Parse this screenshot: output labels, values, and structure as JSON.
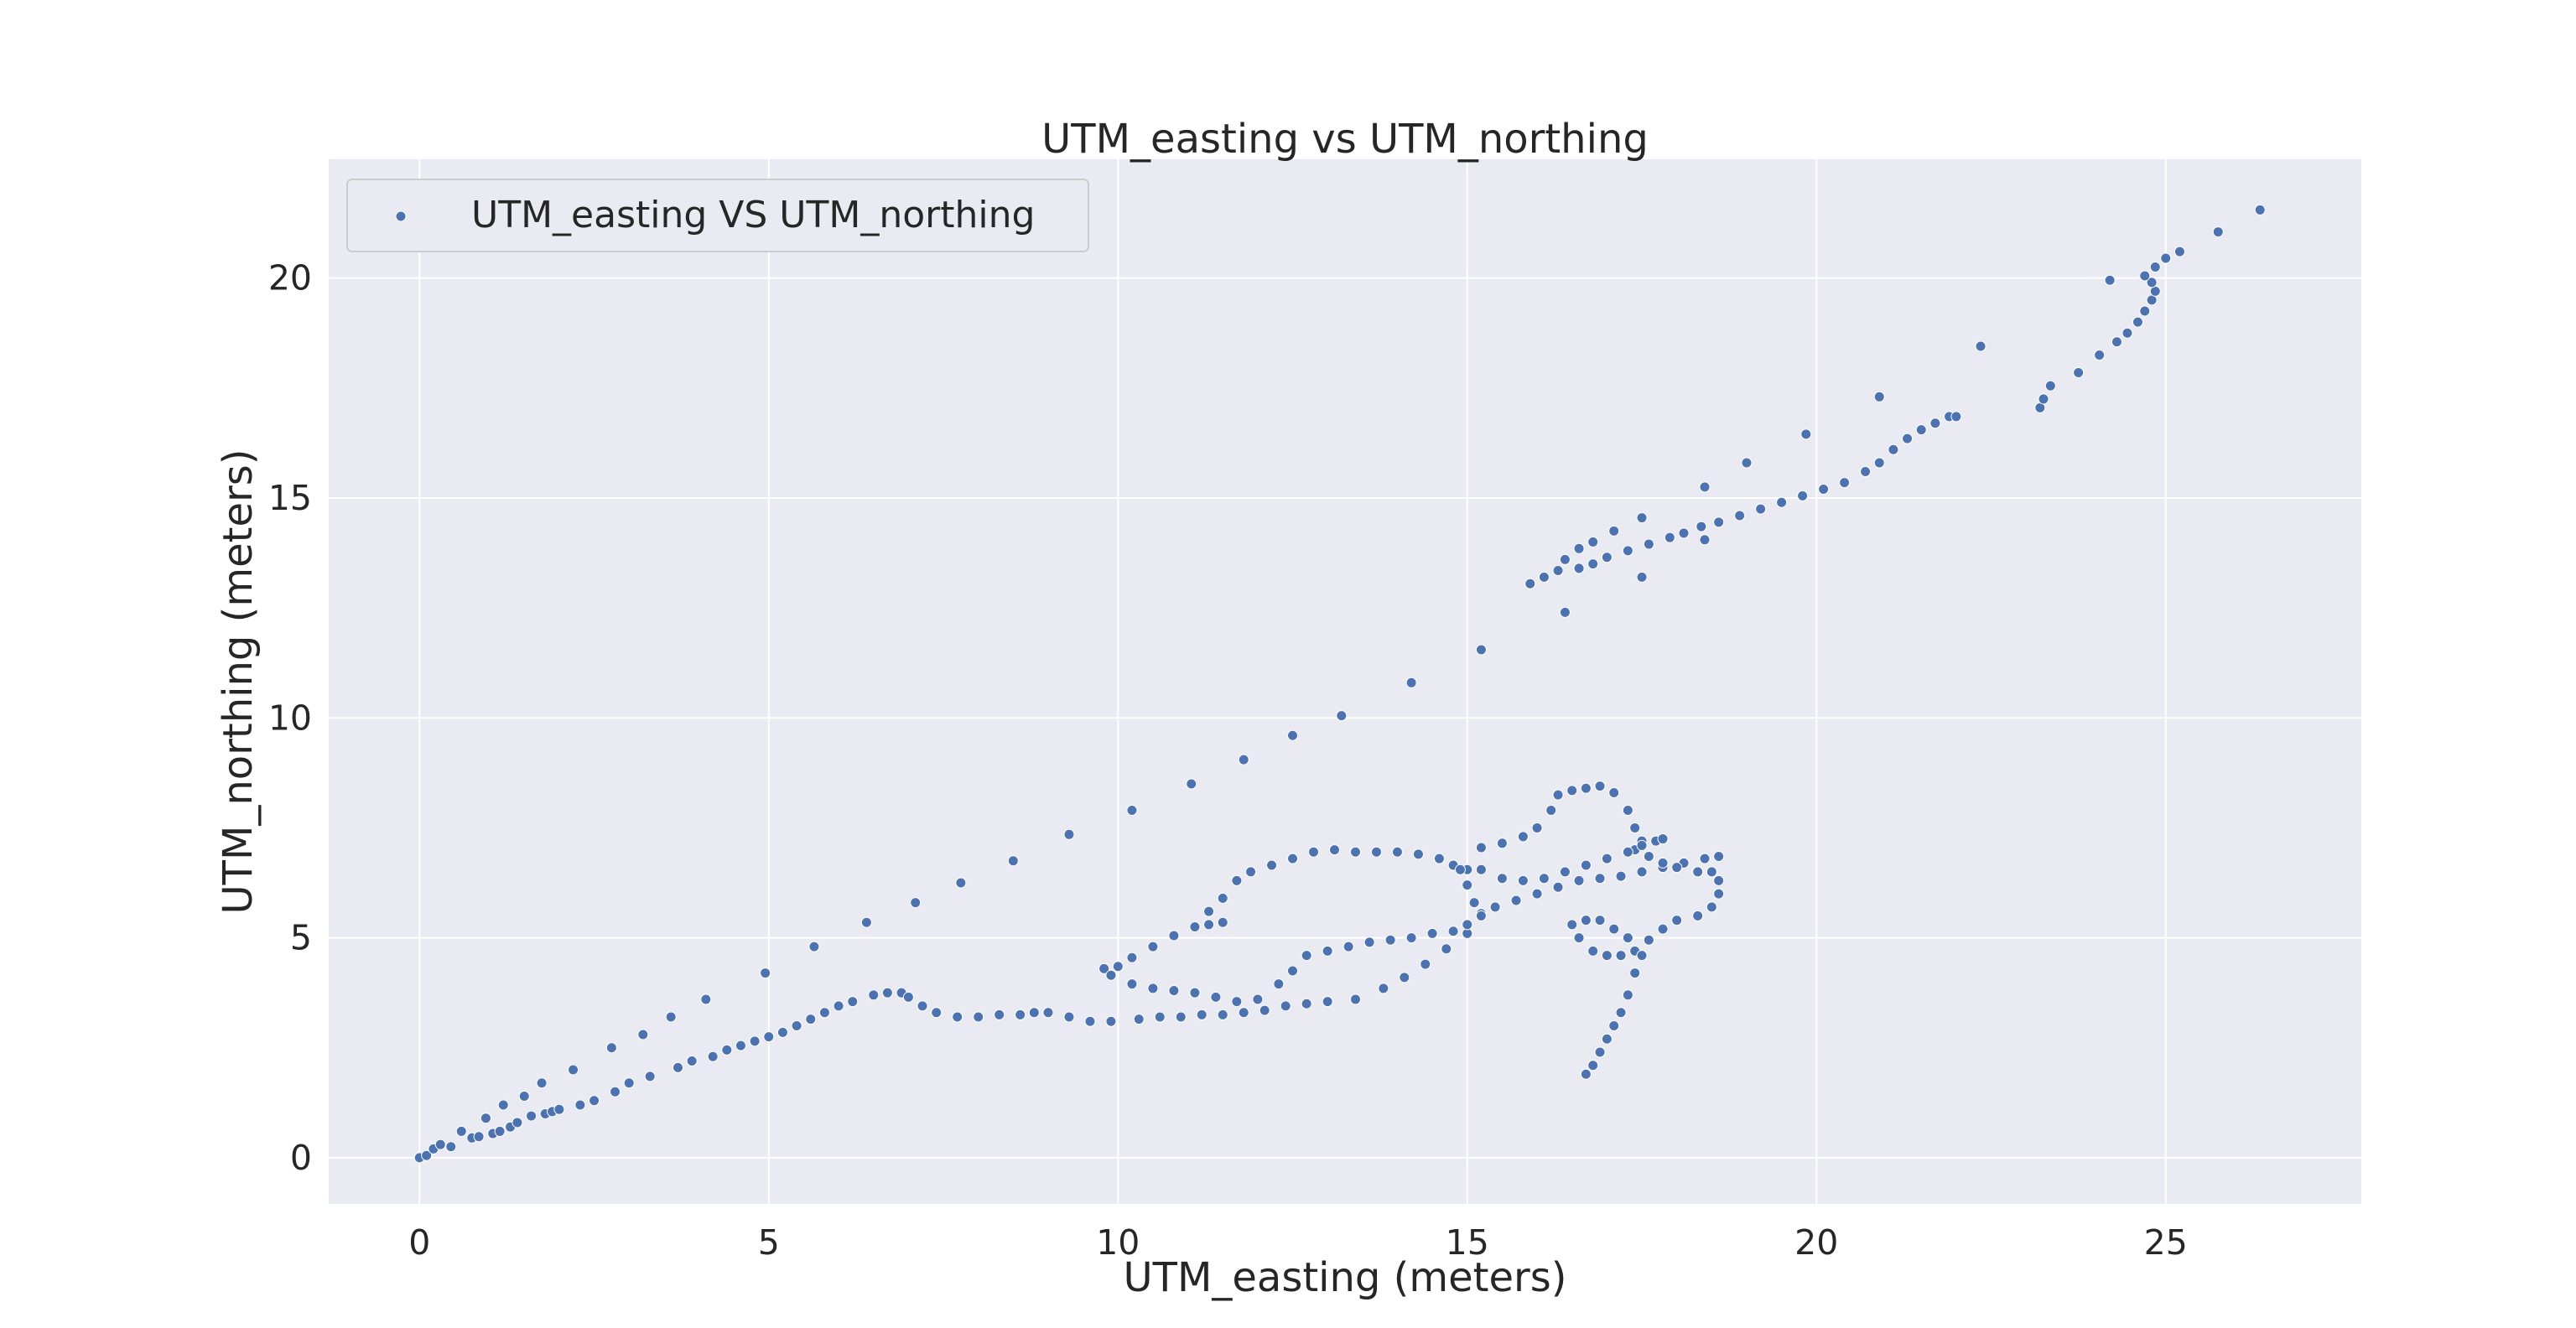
{
  "chart_data": {
    "type": "scatter",
    "title": "UTM_easting vs UTM_northing",
    "xlabel": "UTM_easting (meters)",
    "ylabel": "UTM_northing (meters)",
    "xlim": [
      -1.3,
      27.8
    ],
    "ylim": [
      -1.05,
      22.7
    ],
    "xticks": [
      0,
      5,
      10,
      15,
      20,
      25
    ],
    "yticks": [
      0,
      5,
      10,
      15,
      20
    ],
    "grid": true,
    "legend": {
      "placement": "top-left",
      "entries": [
        "UTM_easting VS UTM_northing"
      ]
    },
    "colors": {
      "point": "#4c72b0",
      "background": "#eaeaf2",
      "grid": "#ffffff"
    },
    "series": [
      {
        "name": "UTM_easting VS UTM_northing",
        "points": [
          [
            0.0,
            0.0
          ],
          [
            0.1,
            0.05
          ],
          [
            0.2,
            0.2
          ],
          [
            0.3,
            0.3
          ],
          [
            0.45,
            0.25
          ],
          [
            0.6,
            0.6
          ],
          [
            0.75,
            0.45
          ],
          [
            0.85,
            0.48
          ],
          [
            0.95,
            0.9
          ],
          [
            1.05,
            0.55
          ],
          [
            1.15,
            0.6
          ],
          [
            1.2,
            1.2
          ],
          [
            1.3,
            0.7
          ],
          [
            1.4,
            0.8
          ],
          [
            1.5,
            1.4
          ],
          [
            1.6,
            0.95
          ],
          [
            1.75,
            1.7
          ],
          [
            1.8,
            1.0
          ],
          [
            1.9,
            1.05
          ],
          [
            2.0,
            1.1
          ],
          [
            2.2,
            2.0
          ],
          [
            2.3,
            1.2
          ],
          [
            2.5,
            1.3
          ],
          [
            2.75,
            2.5
          ],
          [
            2.8,
            1.5
          ],
          [
            3.0,
            1.7
          ],
          [
            3.2,
            2.8
          ],
          [
            3.3,
            1.85
          ],
          [
            3.6,
            3.2
          ],
          [
            3.7,
            2.05
          ],
          [
            3.9,
            2.2
          ],
          [
            4.1,
            3.6
          ],
          [
            4.2,
            2.3
          ],
          [
            4.4,
            2.45
          ],
          [
            4.6,
            2.55
          ],
          [
            4.8,
            2.65
          ],
          [
            4.95,
            4.2
          ],
          [
            5.0,
            2.75
          ],
          [
            5.2,
            2.85
          ],
          [
            5.4,
            3.0
          ],
          [
            5.6,
            3.15
          ],
          [
            5.65,
            4.8
          ],
          [
            5.8,
            3.3
          ],
          [
            6.0,
            3.45
          ],
          [
            6.2,
            3.55
          ],
          [
            6.4,
            5.35
          ],
          [
            6.5,
            3.7
          ],
          [
            6.7,
            3.75
          ],
          [
            6.9,
            3.75
          ],
          [
            7.0,
            3.65
          ],
          [
            7.1,
            5.8
          ],
          [
            7.2,
            3.45
          ],
          [
            7.4,
            3.3
          ],
          [
            7.7,
            3.2
          ],
          [
            7.75,
            6.25
          ],
          [
            8.0,
            3.2
          ],
          [
            8.3,
            3.25
          ],
          [
            8.5,
            6.75
          ],
          [
            8.6,
            3.25
          ],
          [
            8.8,
            3.3
          ],
          [
            9.0,
            3.3
          ],
          [
            9.3,
            7.35
          ],
          [
            9.3,
            3.2
          ],
          [
            9.6,
            3.1
          ],
          [
            9.9,
            3.1
          ],
          [
            10.2,
            7.9
          ],
          [
            10.3,
            3.15
          ],
          [
            10.6,
            3.2
          ],
          [
            10.9,
            3.2
          ],
          [
            11.05,
            8.5
          ],
          [
            11.2,
            3.25
          ],
          [
            11.5,
            3.25
          ],
          [
            11.8,
            9.05
          ],
          [
            11.8,
            3.3
          ],
          [
            12.1,
            3.35
          ],
          [
            12.5,
            9.6
          ],
          [
            12.4,
            3.45
          ],
          [
            12.7,
            3.5
          ],
          [
            13.0,
            3.55
          ],
          [
            13.2,
            10.05
          ],
          [
            13.4,
            3.6
          ],
          [
            13.8,
            3.85
          ],
          [
            14.2,
            10.8
          ],
          [
            14.1,
            4.1
          ],
          [
            14.4,
            4.4
          ],
          [
            14.7,
            4.75
          ],
          [
            15.0,
            5.1
          ],
          [
            15.2,
            11.55
          ],
          [
            9.8,
            4.3
          ],
          [
            10.0,
            4.35
          ],
          [
            10.2,
            4.55
          ],
          [
            10.5,
            4.8
          ],
          [
            10.8,
            5.05
          ],
          [
            11.1,
            5.25
          ],
          [
            11.3,
            5.3
          ],
          [
            11.5,
            5.35
          ],
          [
            11.3,
            5.6
          ],
          [
            11.5,
            5.9
          ],
          [
            11.7,
            6.3
          ],
          [
            11.9,
            6.5
          ],
          [
            12.2,
            6.65
          ],
          [
            12.5,
            6.8
          ],
          [
            12.8,
            6.95
          ],
          [
            13.1,
            7.0
          ],
          [
            13.4,
            6.95
          ],
          [
            13.7,
            6.95
          ],
          [
            14.0,
            6.95
          ],
          [
            14.3,
            6.9
          ],
          [
            14.6,
            6.8
          ],
          [
            14.8,
            6.65
          ],
          [
            15.0,
            6.55
          ],
          [
            9.9,
            4.15
          ],
          [
            10.2,
            3.95
          ],
          [
            10.5,
            3.85
          ],
          [
            10.8,
            3.8
          ],
          [
            11.1,
            3.75
          ],
          [
            11.4,
            3.65
          ],
          [
            11.7,
            3.55
          ],
          [
            12.0,
            3.6
          ],
          [
            12.3,
            3.95
          ],
          [
            12.5,
            4.25
          ],
          [
            12.7,
            4.6
          ],
          [
            13.0,
            4.7
          ],
          [
            13.3,
            4.8
          ],
          [
            13.6,
            4.9
          ],
          [
            13.9,
            4.95
          ],
          [
            14.2,
            5.0
          ],
          [
            14.5,
            5.1
          ],
          [
            14.8,
            5.15
          ],
          [
            15.0,
            5.3
          ],
          [
            15.2,
            5.55
          ],
          [
            15.4,
            5.7
          ],
          [
            15.7,
            5.85
          ],
          [
            16.0,
            6.0
          ],
          [
            16.3,
            6.15
          ],
          [
            16.6,
            6.3
          ],
          [
            16.9,
            6.35
          ],
          [
            17.2,
            6.4
          ],
          [
            17.5,
            6.5
          ],
          [
            17.8,
            6.6
          ],
          [
            18.1,
            6.7
          ],
          [
            18.4,
            6.8
          ],
          [
            18.6,
            6.85
          ],
          [
            14.9,
            6.55
          ],
          [
            15.0,
            6.2
          ],
          [
            15.1,
            5.8
          ],
          [
            15.2,
            5.5
          ],
          [
            15.0,
            5.3
          ],
          [
            15.2,
            7.05
          ],
          [
            15.5,
            7.15
          ],
          [
            15.8,
            7.3
          ],
          [
            16.0,
            7.5
          ],
          [
            16.2,
            7.9
          ],
          [
            16.3,
            8.25
          ],
          [
            16.5,
            8.35
          ],
          [
            16.7,
            8.4
          ],
          [
            16.9,
            8.45
          ],
          [
            17.1,
            8.3
          ],
          [
            17.3,
            7.9
          ],
          [
            17.4,
            7.5
          ],
          [
            17.5,
            7.2
          ],
          [
            17.4,
            7.0
          ],
          [
            17.6,
            6.85
          ],
          [
            17.8,
            6.7
          ],
          [
            18.0,
            6.6
          ],
          [
            18.3,
            6.5
          ],
          [
            18.5,
            6.5
          ],
          [
            18.6,
            6.3
          ],
          [
            18.6,
            6.0
          ],
          [
            18.5,
            5.7
          ],
          [
            18.3,
            5.5
          ],
          [
            18.0,
            5.4
          ],
          [
            17.8,
            5.2
          ],
          [
            17.6,
            4.95
          ],
          [
            17.4,
            4.7
          ],
          [
            17.2,
            4.6
          ],
          [
            17.0,
            4.6
          ],
          [
            16.8,
            4.7
          ],
          [
            16.6,
            5.0
          ],
          [
            16.5,
            5.3
          ],
          [
            16.7,
            5.4
          ],
          [
            16.9,
            5.4
          ],
          [
            17.1,
            5.2
          ],
          [
            17.3,
            5.0
          ],
          [
            17.5,
            4.6
          ],
          [
            17.4,
            4.2
          ],
          [
            17.3,
            3.7
          ],
          [
            17.2,
            3.3
          ],
          [
            17.1,
            3.0
          ],
          [
            17.0,
            2.7
          ],
          [
            16.9,
            2.4
          ],
          [
            16.8,
            2.1
          ],
          [
            16.7,
            1.9
          ],
          [
            15.2,
            6.55
          ],
          [
            15.5,
            6.35
          ],
          [
            15.8,
            6.3
          ],
          [
            16.1,
            6.35
          ],
          [
            16.4,
            6.5
          ],
          [
            16.7,
            6.65
          ],
          [
            17.0,
            6.8
          ],
          [
            17.3,
            6.95
          ],
          [
            17.5,
            7.1
          ],
          [
            17.7,
            7.2
          ],
          [
            17.8,
            7.25
          ],
          [
            15.9,
            13.05
          ],
          [
            16.1,
            13.2
          ],
          [
            16.3,
            13.35
          ],
          [
            16.4,
            13.6
          ],
          [
            16.6,
            13.4
          ],
          [
            16.6,
            13.85
          ],
          [
            16.8,
            14.0
          ],
          [
            16.8,
            13.5
          ],
          [
            17.1,
            14.25
          ],
          [
            17.0,
            13.65
          ],
          [
            17.5,
            14.55
          ],
          [
            17.3,
            13.8
          ],
          [
            17.6,
            13.95
          ],
          [
            17.9,
            14.1
          ],
          [
            18.1,
            14.2
          ],
          [
            18.35,
            14.35
          ],
          [
            18.6,
            14.45
          ],
          [
            18.4,
            15.25
          ],
          [
            18.9,
            14.6
          ],
          [
            19.2,
            14.75
          ],
          [
            19.5,
            14.9
          ],
          [
            19.8,
            15.05
          ],
          [
            19.0,
            15.8
          ],
          [
            20.1,
            15.2
          ],
          [
            20.4,
            15.35
          ],
          [
            20.7,
            15.6
          ],
          [
            19.85,
            16.45
          ],
          [
            20.9,
            15.8
          ],
          [
            21.1,
            16.1
          ],
          [
            21.3,
            16.35
          ],
          [
            21.5,
            16.55
          ],
          [
            21.7,
            16.7
          ],
          [
            21.9,
            16.85
          ],
          [
            20.9,
            17.3
          ],
          [
            22.0,
            16.85
          ],
          [
            16.4,
            12.4
          ],
          [
            17.5,
            13.2
          ],
          [
            18.4,
            14.05
          ],
          [
            22.35,
            18.45
          ],
          [
            23.2,
            17.05
          ],
          [
            23.25,
            17.25
          ],
          [
            23.35,
            17.55
          ],
          [
            23.75,
            17.85
          ],
          [
            24.05,
            18.25
          ],
          [
            24.3,
            18.55
          ],
          [
            24.45,
            18.75
          ],
          [
            24.6,
            19.0
          ],
          [
            24.7,
            19.25
          ],
          [
            24.8,
            19.5
          ],
          [
            24.85,
            19.7
          ],
          [
            24.8,
            19.9
          ],
          [
            24.7,
            20.05
          ],
          [
            24.85,
            20.25
          ],
          [
            24.2,
            19.95
          ],
          [
            25.0,
            20.45
          ],
          [
            25.2,
            20.6
          ],
          [
            25.75,
            21.05
          ],
          [
            26.35,
            21.55
          ]
        ]
      }
    ]
  }
}
